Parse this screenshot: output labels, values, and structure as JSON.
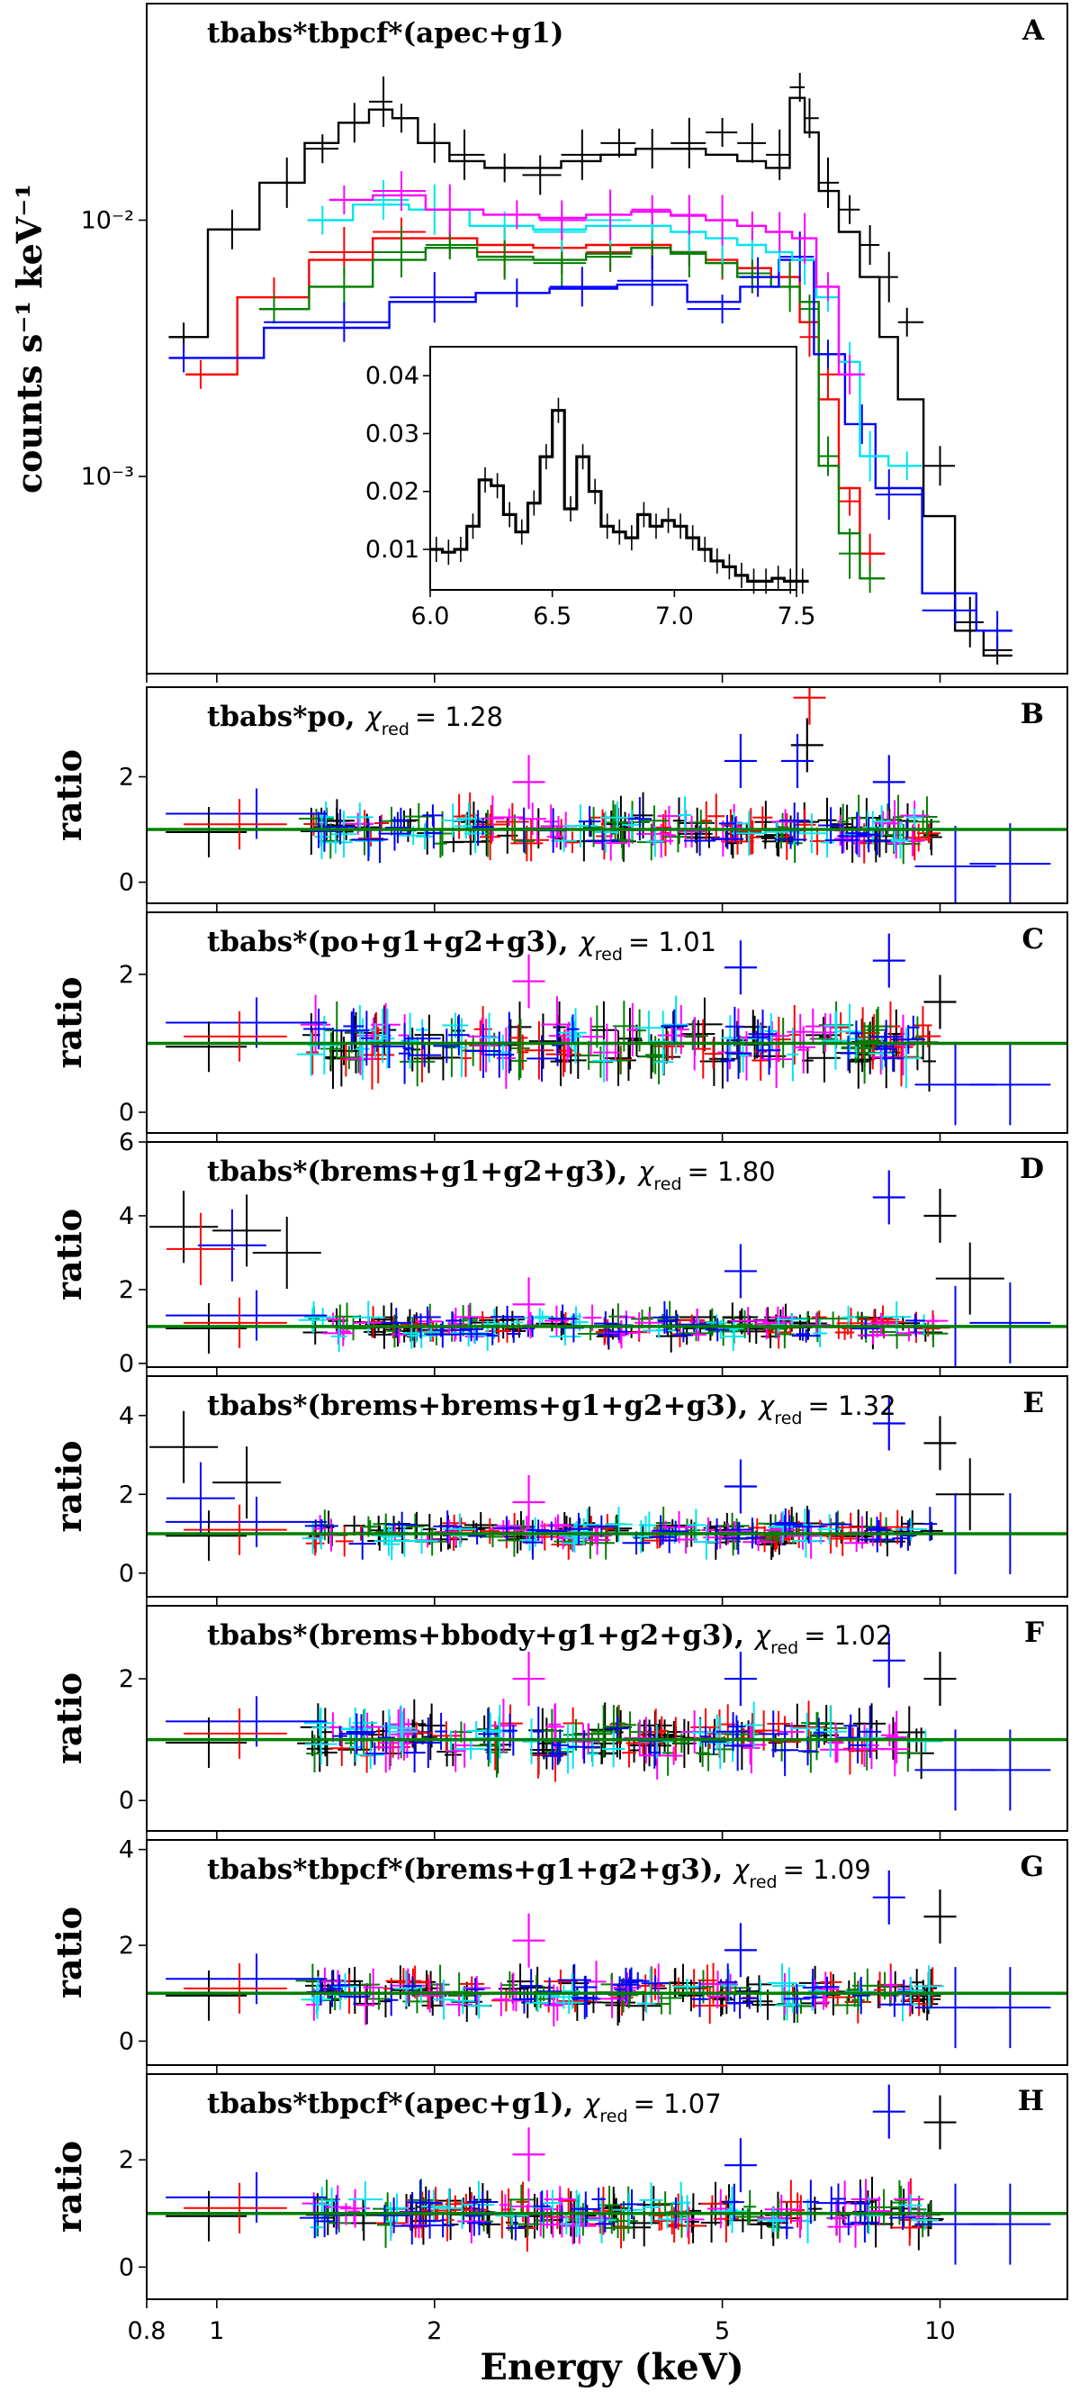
{
  "chart_data": {
    "type": "scatter",
    "title": "",
    "xlabel": "Energy (keV)",
    "xscale": "log",
    "xlim": [
      0.8,
      15
    ],
    "xticks": [
      {
        "value": 0.8,
        "label": "0.8"
      },
      {
        "value": 1,
        "label": "1"
      },
      {
        "value": 2,
        "label": "2"
      },
      {
        "value": 5,
        "label": "5"
      },
      {
        "value": 10,
        "label": "10"
      }
    ],
    "series_colors": {
      "black": "#000000",
      "red": "#ff0000",
      "green": "#007f00",
      "blue": "#0000ff",
      "cyan": "#00e5ee",
      "magenta": "#ff00ff"
    },
    "model_color": "#007f00",
    "panels": [
      {
        "letter": "A",
        "model_label": "tbabs*tbpcf*(apec+g1)",
        "ylabel": "counts s⁻¹ keV⁻¹",
        "yscale": "log",
        "ylim": [
          0.00017,
          0.07
        ],
        "yticks": [
          {
            "value": 0.001,
            "label": "10⁻³"
          },
          {
            "value": 0.01,
            "label": "10⁻²"
          }
        ],
        "series": [
          {
            "name": "black",
            "x": [
              0.9,
              1.05,
              1.25,
              1.4,
              1.55,
              1.7,
              1.8,
              2.0,
              2.2,
              2.5,
              2.8,
              3.2,
              3.6,
              4.0,
              4.5,
              5.0,
              5.5,
              6.0,
              6.4,
              6.6,
              7.0,
              7.5,
              8.0,
              8.5,
              9.0,
              10.0,
              11.0,
              12.0
            ],
            "y": [
              0.0035,
              0.0092,
              0.014,
              0.019,
              0.024,
              0.029,
              0.025,
              0.02,
              0.018,
              0.016,
              0.015,
              0.018,
              0.02,
              0.019,
              0.02,
              0.022,
              0.02,
              0.018,
              0.033,
              0.025,
              0.014,
              0.011,
              0.008,
              0.006,
              0.004,
              0.0011,
              0.00027,
              0.00021
            ],
            "model": [
              0.0035,
              0.0092,
              0.014,
              0.02,
              0.024,
              0.027,
              0.025,
              0.02,
              0.017,
              0.016,
              0.016,
              0.017,
              0.018,
              0.019,
              0.019,
              0.018,
              0.017,
              0.016,
              0.03,
              0.022,
              0.013,
              0.009,
              0.006,
              0.0035,
              0.002,
              0.0007,
              0.00025,
              0.0002
            ]
          },
          {
            "name": "red",
            "x": [
              0.95,
              1.2,
              1.5,
              1.8,
              2.1,
              2.5,
              3.0,
              3.5,
              4.0,
              4.5,
              5.0,
              5.5,
              6.2,
              6.6,
              7.0,
              7.5,
              8.0
            ],
            "y": [
              0.0025,
              0.005,
              0.0075,
              0.009,
              0.0085,
              0.0075,
              0.007,
              0.0075,
              0.008,
              0.0075,
              0.007,
              0.0065,
              0.006,
              0.0035,
              0.0025,
              0.0008,
              0.0005
            ],
            "model": [
              0.0025,
              0.005,
              0.007,
              0.0085,
              0.0085,
              0.008,
              0.0078,
              0.008,
              0.008,
              0.0075,
              0.007,
              0.0065,
              0.006,
              0.004,
              0.002,
              0.0009,
              0.0005
            ]
          },
          {
            "name": "green",
            "x": [
              1.2,
              1.5,
              1.8,
              2.1,
              2.5,
              3.0,
              3.5,
              4.0,
              4.5,
              5.0,
              5.5,
              6.2,
              6.6,
              7.0,
              7.5,
              8.0
            ],
            "y": [
              0.0045,
              0.0055,
              0.0075,
              0.008,
              0.007,
              0.0068,
              0.0072,
              0.0078,
              0.0075,
              0.0068,
              0.0062,
              0.0055,
              0.0045,
              0.0012,
              0.0005,
              0.0004
            ],
            "model": [
              0.0045,
              0.0055,
              0.007,
              0.0078,
              0.0072,
              0.007,
              0.0074,
              0.0078,
              0.0074,
              0.0068,
              0.006,
              0.0055,
              0.0048,
              0.0011,
              0.0006,
              0.0004
            ]
          },
          {
            "name": "blue",
            "x": [
              0.9,
              1.5,
              2.0,
              2.6,
              3.2,
              4.0,
              5.0,
              5.6,
              6.4,
              7.0,
              7.8,
              8.5,
              10.5,
              12.0
            ],
            "y": [
              0.0029,
              0.004,
              0.005,
              0.0052,
              0.0055,
              0.0058,
              0.0045,
              0.006,
              0.0072,
              0.003,
              0.0016,
              0.00085,
              0.0003,
              0.00025
            ],
            "model": [
              0.0029,
              0.0038,
              0.0048,
              0.0052,
              0.0054,
              0.0056,
              0.0048,
              0.0055,
              0.007,
              0.003,
              0.0016,
              0.0009,
              0.00035,
              0.00025
            ]
          },
          {
            "name": "cyan",
            "x": [
              1.4,
              1.7,
              2.0,
              2.5,
              3.0,
              3.5,
              4.0,
              4.5,
              5.0,
              5.5,
              6.0,
              6.5,
              7.0,
              7.5,
              8.0,
              9.0
            ],
            "y": [
              0.01,
              0.012,
              0.011,
              0.0095,
              0.009,
              0.01,
              0.0095,
              0.009,
              0.0085,
              0.008,
              0.0075,
              0.007,
              0.005,
              0.0028,
              0.0012,
              0.0011
            ],
            "model": [
              0.01,
              0.0115,
              0.011,
              0.0095,
              0.0092,
              0.0095,
              0.0095,
              0.009,
              0.0085,
              0.008,
              0.0075,
              0.007,
              0.005,
              0.0028,
              0.0012,
              0.0011
            ]
          },
          {
            "name": "magenta",
            "x": [
              1.5,
              1.8,
              2.1,
              2.6,
              3.0,
              3.5,
              4.0,
              4.5,
              5.0,
              5.5,
              6.0,
              6.5,
              7.0,
              7.5
            ],
            "y": [
              0.012,
              0.013,
              0.011,
              0.0105,
              0.01,
              0.0105,
              0.011,
              0.0105,
              0.01,
              0.0095,
              0.009,
              0.0085,
              0.0055,
              0.0025
            ],
            "model": [
              0.012,
              0.0125,
              0.011,
              0.0105,
              0.0102,
              0.0105,
              0.0108,
              0.0104,
              0.01,
              0.0095,
              0.009,
              0.0085,
              0.0055,
              0.0025
            ]
          }
        ],
        "inset": {
          "xlim": [
            6.0,
            7.5
          ],
          "ylim": [
            0.003,
            0.045
          ],
          "xticks": [
            {
              "value": 6.0,
              "label": "6.0"
            },
            {
              "value": 6.5,
              "label": "6.5"
            },
            {
              "value": 7.0,
              "label": "7.0"
            },
            {
              "value": 7.5,
              "label": "7.5"
            }
          ],
          "yticks": [
            {
              "value": 0.01,
              "label": "0.01"
            },
            {
              "value": 0.02,
              "label": "0.02"
            },
            {
              "value": 0.03,
              "label": "0.03"
            },
            {
              "value": 0.04,
              "label": "0.04"
            }
          ],
          "x": [
            6.0,
            6.05,
            6.1,
            6.15,
            6.2,
            6.25,
            6.3,
            6.35,
            6.4,
            6.45,
            6.5,
            6.55,
            6.6,
            6.65,
            6.7,
            6.75,
            6.8,
            6.85,
            6.9,
            6.95,
            7.0,
            7.05,
            7.1,
            7.15,
            7.2,
            7.25,
            7.3,
            7.35,
            7.4,
            7.45,
            7.5
          ],
          "y": [
            0.01,
            0.0095,
            0.01,
            0.014,
            0.022,
            0.021,
            0.016,
            0.013,
            0.018,
            0.026,
            0.034,
            0.017,
            0.026,
            0.02,
            0.014,
            0.013,
            0.012,
            0.016,
            0.014,
            0.015,
            0.014,
            0.012,
            0.01,
            0.008,
            0.007,
            0.0055,
            0.0045,
            0.0045,
            0.005,
            0.0045,
            0.0045
          ]
        }
      },
      {
        "letter": "B",
        "model_label": "tbabs*po,",
        "chi_value": "= 1.28",
        "ylabel": "ratio",
        "yscale": "linear",
        "ylim": [
          -0.4,
          3.7
        ],
        "yticks": [
          {
            "value": 0,
            "label": "0"
          },
          {
            "value": 2,
            "label": "2"
          }
        ],
        "spikes": [
          {
            "x": 6.6,
            "y": 3.5,
            "color": "red"
          },
          {
            "x": 6.55,
            "y": 2.6,
            "color": "black"
          },
          {
            "x": 6.35,
            "y": 2.3,
            "color": "blue"
          },
          {
            "x": 5.3,
            "y": 2.3,
            "color": "blue"
          },
          {
            "x": 8.5,
            "y": 1.9,
            "color": "blue"
          },
          {
            "x": 2.7,
            "y": 1.9,
            "color": "magenta"
          }
        ],
        "blue_tail": [
          {
            "x": 10.5,
            "y": 0.3
          },
          {
            "x": 12.5,
            "y": 0.35
          }
        ]
      },
      {
        "letter": "C",
        "model_label": "tbabs*(po+g1+g2+g3),",
        "chi_value": "= 1.01",
        "ylabel": "ratio",
        "yscale": "linear",
        "ylim": [
          -0.3,
          2.9
        ],
        "yticks": [
          {
            "value": 0,
            "label": "0"
          },
          {
            "value": 2,
            "label": "2"
          }
        ],
        "spikes": [
          {
            "x": 8.5,
            "y": 2.2,
            "color": "blue"
          },
          {
            "x": 5.3,
            "y": 2.1,
            "color": "blue"
          },
          {
            "x": 2.7,
            "y": 1.9,
            "color": "magenta"
          },
          {
            "x": 10.0,
            "y": 1.6,
            "color": "black"
          }
        ],
        "blue_tail": [
          {
            "x": 10.5,
            "y": 0.4
          },
          {
            "x": 12.5,
            "y": 0.4
          }
        ]
      },
      {
        "letter": "D",
        "model_label": "tbabs*(brems+g1+g2+g3),",
        "chi_value": "= 1.80",
        "ylabel": "ratio",
        "yscale": "linear",
        "ylim": [
          -0.1,
          6.0
        ],
        "yticks": [
          {
            "value": 0,
            "label": "0"
          },
          {
            "value": 2,
            "label": "2"
          },
          {
            "value": 4,
            "label": "4"
          },
          {
            "value": 6,
            "label": "6"
          }
        ],
        "spikes": [
          {
            "x": 8.5,
            "y": 4.5,
            "color": "blue"
          },
          {
            "x": 10.0,
            "y": 4.0,
            "color": "black"
          },
          {
            "x": 5.3,
            "y": 2.5,
            "color": "blue"
          },
          {
            "x": 2.7,
            "y": 1.6,
            "color": "magenta"
          }
        ],
        "low_energy": [
          {
            "x": 0.9,
            "y": 3.7,
            "color": "black"
          },
          {
            "x": 0.95,
            "y": 3.1,
            "color": "red"
          },
          {
            "x": 1.05,
            "y": 3.2,
            "color": "blue"
          },
          {
            "x": 1.1,
            "y": 3.6,
            "color": "black"
          },
          {
            "x": 1.25,
            "y": 3.0,
            "color": "black"
          },
          {
            "x": 11.0,
            "y": 2.3,
            "color": "black"
          }
        ],
        "blue_tail": [
          {
            "x": 10.5,
            "y": 1.0
          },
          {
            "x": 12.5,
            "y": 1.1
          }
        ]
      },
      {
        "letter": "E",
        "model_label": "tbabs*(brems+brems+g1+g2+g3),",
        "chi_value": "= 1.32",
        "ylabel": "ratio",
        "yscale": "linear",
        "ylim": [
          -0.6,
          5.0
        ],
        "yticks": [
          {
            "value": 0,
            "label": "0"
          },
          {
            "value": 2,
            "label": "2"
          },
          {
            "value": 4,
            "label": "4"
          }
        ],
        "spikes": [
          {
            "x": 8.5,
            "y": 3.8,
            "color": "blue"
          },
          {
            "x": 10.0,
            "y": 3.3,
            "color": "black"
          },
          {
            "x": 5.3,
            "y": 2.2,
            "color": "blue"
          },
          {
            "x": 2.7,
            "y": 1.8,
            "color": "magenta"
          }
        ],
        "low_energy": [
          {
            "x": 0.9,
            "y": 3.2,
            "color": "black"
          },
          {
            "x": 1.1,
            "y": 2.3,
            "color": "black"
          },
          {
            "x": 0.95,
            "y": 1.9,
            "color": "blue"
          },
          {
            "x": 11.0,
            "y": 2.0,
            "color": "black"
          }
        ],
        "blue_tail": [
          {
            "x": 10.5,
            "y": 1.0
          },
          {
            "x": 12.5,
            "y": 1.0
          }
        ]
      },
      {
        "letter": "F",
        "model_label": "tbabs*(brems+bbody+g1+g2+g3),",
        "chi_value": "= 1.02",
        "ylabel": "ratio",
        "yscale": "linear",
        "ylim": [
          -0.5,
          3.2
        ],
        "yticks": [
          {
            "value": 0,
            "label": "0"
          },
          {
            "value": 2,
            "label": "2"
          }
        ],
        "spikes": [
          {
            "x": 8.5,
            "y": 2.3,
            "color": "blue"
          },
          {
            "x": 10.0,
            "y": 2.0,
            "color": "black"
          },
          {
            "x": 5.3,
            "y": 2.0,
            "color": "blue"
          },
          {
            "x": 2.7,
            "y": 2.0,
            "color": "magenta"
          }
        ],
        "blue_tail": [
          {
            "x": 10.5,
            "y": 0.5
          },
          {
            "x": 12.5,
            "y": 0.5
          }
        ]
      },
      {
        "letter": "G",
        "model_label": "tbabs*tbpcf*(brems+g1+g2+g3),",
        "chi_value": "= 1.09",
        "ylabel": "ratio",
        "yscale": "linear",
        "ylim": [
          -0.5,
          4.2
        ],
        "yticks": [
          {
            "value": 0,
            "label": "0"
          },
          {
            "value": 2,
            "label": "2"
          },
          {
            "value": 4,
            "label": "4"
          }
        ],
        "spikes": [
          {
            "x": 8.5,
            "y": 3.0,
            "color": "blue"
          },
          {
            "x": 10.0,
            "y": 2.6,
            "color": "black"
          },
          {
            "x": 5.3,
            "y": 1.9,
            "color": "blue"
          },
          {
            "x": 2.7,
            "y": 2.1,
            "color": "magenta"
          }
        ],
        "blue_tail": [
          {
            "x": 10.5,
            "y": 0.7
          },
          {
            "x": 12.5,
            "y": 0.7
          }
        ]
      },
      {
        "letter": "H",
        "model_label": "tbabs*tbpcf*(apec+g1),",
        "chi_value": "= 1.07",
        "ylabel": "ratio",
        "yscale": "linear",
        "ylim": [
          -0.6,
          3.6
        ],
        "yticks": [
          {
            "value": 0,
            "label": "0"
          },
          {
            "value": 2,
            "label": "2"
          }
        ],
        "spikes": [
          {
            "x": 8.5,
            "y": 2.9,
            "color": "blue"
          },
          {
            "x": 10.0,
            "y": 2.7,
            "color": "black"
          },
          {
            "x": 5.3,
            "y": 1.9,
            "color": "blue"
          },
          {
            "x": 2.7,
            "y": 2.1,
            "color": "magenta"
          }
        ],
        "blue_tail": [
          {
            "x": 10.5,
            "y": 0.8
          },
          {
            "x": 12.5,
            "y": 0.8
          }
        ]
      }
    ]
  }
}
